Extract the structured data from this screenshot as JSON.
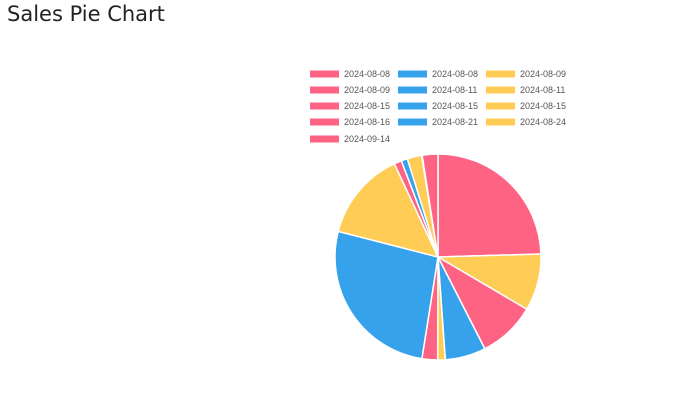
{
  "page": {
    "title": "Sales Pie Chart"
  },
  "chart_data": {
    "type": "pie",
    "title": "",
    "legend_position": "top",
    "start_angle": "12 o'clock, clockwise",
    "colors": {
      "red": "#ff6384",
      "blue": "#36a2eb",
      "yellow": "#ffcd56",
      "slice_border": "#ffffff"
    },
    "slices": [
      {
        "label": "2024-08-08",
        "value": 25.0,
        "color": "#ff6384"
      },
      {
        "label": "2024-08-09",
        "value": 9.1,
        "color": "#ffcd56"
      },
      {
        "label": "2024-08-09",
        "value": 9.2,
        "color": "#ff6384"
      },
      {
        "label": "2024-08-11",
        "value": 6.5,
        "color": "#36a2eb"
      },
      {
        "label": "2024-08-11",
        "value": 1.2,
        "color": "#ffcd56"
      },
      {
        "label": "2024-08-15",
        "value": 2.5,
        "color": "#ff6384"
      },
      {
        "label": "2024-08-08",
        "value": 27.0,
        "color": "#36a2eb"
      },
      {
        "label": "2024-08-15",
        "value": 14.3,
        "color": "#ffcd56"
      },
      {
        "label": "2024-08-16",
        "value": 1.2,
        "color": "#ff6384"
      },
      {
        "label": "2024-08-15",
        "value": 1.0,
        "color": "#36a2eb"
      },
      {
        "label": "2024-08-24",
        "value": 2.3,
        "color": "#ffcd56"
      },
      {
        "label": "2024-08-21",
        "value": 0.1,
        "color": "#36a2eb"
      },
      {
        "label": "2024-09-14",
        "value": 2.5,
        "color": "#ff6384"
      }
    ],
    "legend": [
      {
        "label": "2024-08-08",
        "color": "#ff6384"
      },
      {
        "label": "2024-08-08",
        "color": "#36a2eb"
      },
      {
        "label": "2024-08-09",
        "color": "#ffcd56"
      },
      {
        "label": "2024-08-09",
        "color": "#ff6384"
      },
      {
        "label": "2024-08-11",
        "color": "#36a2eb"
      },
      {
        "label": "2024-08-11",
        "color": "#ffcd56"
      },
      {
        "label": "2024-08-15",
        "color": "#ff6384"
      },
      {
        "label": "2024-08-15",
        "color": "#36a2eb"
      },
      {
        "label": "2024-08-15",
        "color": "#ffcd56"
      },
      {
        "label": "2024-08-16",
        "color": "#ff6384"
      },
      {
        "label": "2024-08-21",
        "color": "#36a2eb"
      },
      {
        "label": "2024-08-24",
        "color": "#ffcd56"
      },
      {
        "label": "2024-09-14",
        "color": "#ff6384"
      }
    ]
  }
}
